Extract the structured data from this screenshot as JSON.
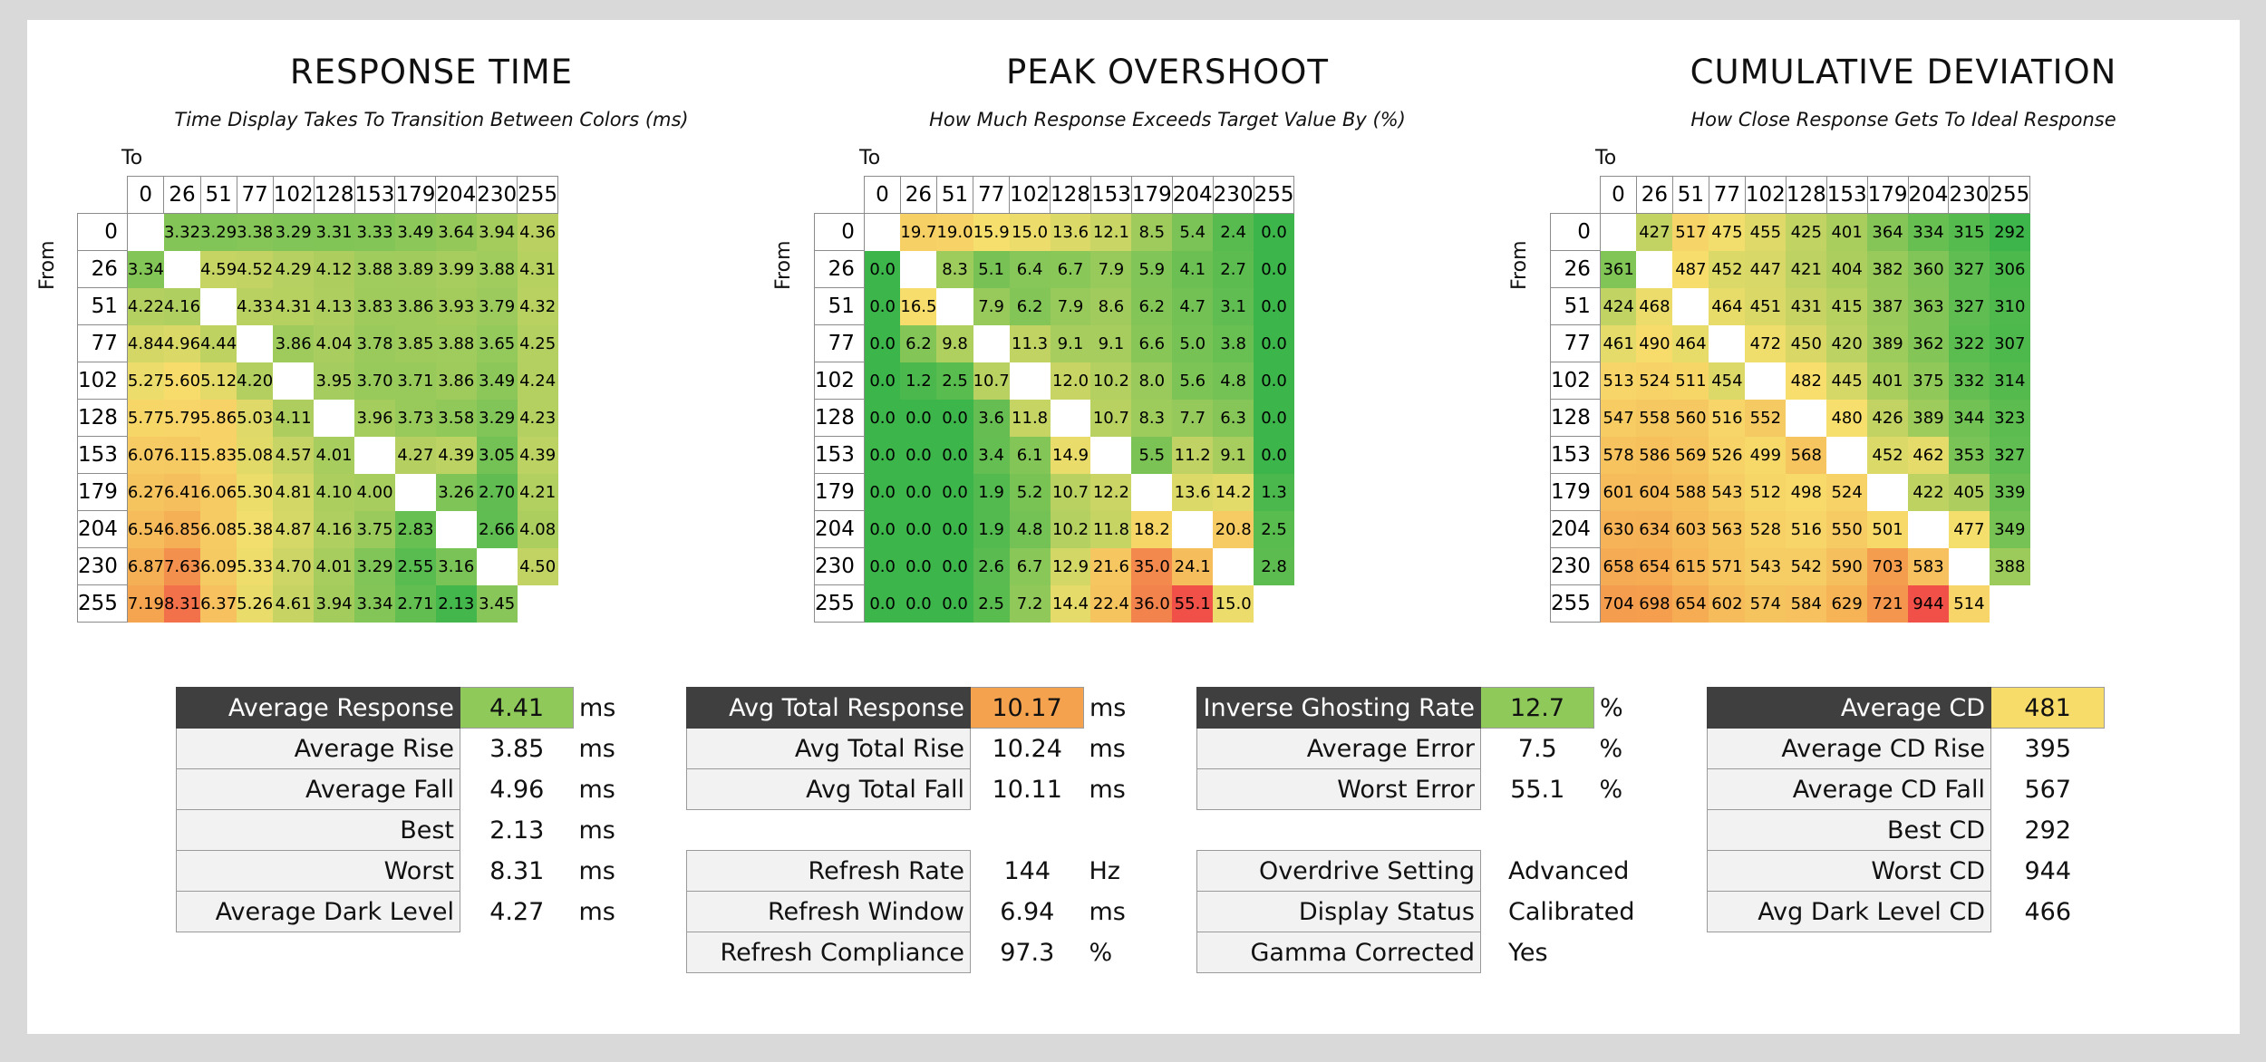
{
  "colors": {
    "green": "#3cb54a",
    "yellow": "#f7df6d",
    "orange": "#f5a24e",
    "red": "#f05048",
    "dark_label_bg": "#3f3f3f"
  },
  "axis": {
    "to_label": "To",
    "from_label": "From"
  },
  "chart_data": [
    {
      "type": "heatmap",
      "title": "RESPONSE TIME",
      "subtitle": "Time Display Takes To Transition Between Colors (ms)",
      "xlabel": "To",
      "ylabel": "From",
      "x": [
        "0",
        "26",
        "51",
        "77",
        "102",
        "128",
        "153",
        "179",
        "204",
        "230",
        "255"
      ],
      "y": [
        "0",
        "26",
        "51",
        "77",
        "102",
        "128",
        "153",
        "179",
        "204",
        "230",
        "255"
      ],
      "scale": {
        "low": 2.0,
        "mid": 5.5,
        "high": 9.0
      },
      "decimals": 2,
      "values": [
        [
          null,
          3.32,
          3.29,
          3.38,
          3.29,
          3.31,
          3.33,
          3.49,
          3.64,
          3.94,
          4.36
        ],
        [
          3.34,
          null,
          4.59,
          4.52,
          4.29,
          4.12,
          3.88,
          3.89,
          3.99,
          3.88,
          4.31
        ],
        [
          4.22,
          4.16,
          null,
          4.33,
          4.31,
          4.13,
          3.83,
          3.86,
          3.93,
          3.79,
          4.32
        ],
        [
          4.84,
          4.96,
          4.44,
          null,
          3.86,
          4.04,
          3.78,
          3.85,
          3.88,
          3.65,
          4.25
        ],
        [
          5.27,
          5.6,
          5.12,
          4.2,
          null,
          3.95,
          3.7,
          3.71,
          3.86,
          3.49,
          4.24
        ],
        [
          5.77,
          5.79,
          5.86,
          5.03,
          4.11,
          null,
          3.96,
          3.73,
          3.58,
          3.29,
          4.23
        ],
        [
          6.07,
          6.11,
          5.83,
          5.08,
          4.57,
          4.01,
          null,
          4.27,
          4.39,
          3.05,
          4.39
        ],
        [
          6.27,
          6.41,
          6.06,
          5.3,
          4.81,
          4.1,
          4.0,
          null,
          3.26,
          2.7,
          4.21
        ],
        [
          6.54,
          6.85,
          6.08,
          5.38,
          4.87,
          4.16,
          3.75,
          2.83,
          null,
          2.66,
          4.08
        ],
        [
          6.87,
          7.63,
          6.09,
          5.33,
          4.7,
          4.01,
          3.29,
          2.55,
          3.16,
          null,
          4.5
        ],
        [
          7.19,
          8.31,
          6.37,
          5.26,
          4.61,
          3.94,
          3.34,
          2.71,
          2.13,
          3.45,
          null
        ]
      ]
    },
    {
      "type": "heatmap",
      "title": "PEAK OVERSHOOT",
      "subtitle": "How Much Response Exceeds Target Value By (%)",
      "xlabel": "To",
      "ylabel": "From",
      "x": [
        "0",
        "26",
        "51",
        "77",
        "102",
        "128",
        "153",
        "179",
        "204",
        "230",
        "255"
      ],
      "y": [
        "0",
        "26",
        "51",
        "77",
        "102",
        "128",
        "153",
        "179",
        "204",
        "230",
        "255"
      ],
      "scale": {
        "low": 0,
        "mid": 16,
        "high": 45
      },
      "decimals": 1,
      "values": [
        [
          null,
          19.7,
          19.0,
          15.9,
          15.0,
          13.6,
          12.1,
          8.5,
          5.4,
          2.4,
          0.0
        ],
        [
          0.0,
          null,
          8.3,
          5.1,
          6.4,
          6.7,
          7.9,
          5.9,
          4.1,
          2.7,
          0.0
        ],
        [
          0.0,
          16.5,
          null,
          7.9,
          6.2,
          7.9,
          8.6,
          6.2,
          4.7,
          3.1,
          0.0
        ],
        [
          0.0,
          6.2,
          9.8,
          null,
          11.3,
          9.1,
          9.1,
          6.6,
          5.0,
          3.8,
          0.0
        ],
        [
          0.0,
          1.2,
          2.5,
          10.7,
          null,
          12.0,
          10.2,
          8.0,
          5.6,
          4.8,
          0.0
        ],
        [
          0.0,
          0.0,
          0.0,
          3.6,
          11.8,
          null,
          10.7,
          8.3,
          7.7,
          6.3,
          0.0
        ],
        [
          0.0,
          0.0,
          0.0,
          3.4,
          6.1,
          14.9,
          null,
          5.5,
          11.2,
          9.1,
          0.0
        ],
        [
          0.0,
          0.0,
          0.0,
          1.9,
          5.2,
          10.7,
          12.2,
          null,
          13.6,
          14.2,
          1.3
        ],
        [
          0.0,
          0.0,
          0.0,
          1.9,
          4.8,
          10.2,
          11.8,
          18.2,
          null,
          20.8,
          2.5
        ],
        [
          0.0,
          0.0,
          0.0,
          2.6,
          6.7,
          12.9,
          21.6,
          35.0,
          24.1,
          null,
          2.8
        ],
        [
          0.0,
          0.0,
          0.0,
          2.5,
          7.2,
          14.4,
          22.4,
          36.0,
          55.1,
          15.0,
          null
        ]
      ]
    },
    {
      "type": "heatmap",
      "title": "CUMULATIVE DEVIATION",
      "subtitle": "How Close Response Gets To Ideal Response",
      "xlabel": "To",
      "ylabel": "From",
      "x": [
        "0",
        "26",
        "51",
        "77",
        "102",
        "128",
        "153",
        "179",
        "204",
        "230",
        "255"
      ],
      "y": [
        "0",
        "26",
        "51",
        "77",
        "102",
        "128",
        "153",
        "179",
        "204",
        "230",
        "255"
      ],
      "scale": {
        "low": 290,
        "mid": 480,
        "high": 900
      },
      "decimals": 0,
      "values": [
        [
          null,
          427,
          517,
          475,
          455,
          425,
          401,
          364,
          334,
          315,
          292
        ],
        [
          361,
          null,
          487,
          452,
          447,
          421,
          404,
          382,
          360,
          327,
          306
        ],
        [
          424,
          468,
          null,
          464,
          451,
          431,
          415,
          387,
          363,
          327,
          310
        ],
        [
          461,
          490,
          464,
          null,
          472,
          450,
          420,
          389,
          362,
          322,
          307
        ],
        [
          513,
          524,
          511,
          454,
          null,
          482,
          445,
          401,
          375,
          332,
          314
        ],
        [
          547,
          558,
          560,
          516,
          552,
          null,
          480,
          426,
          389,
          344,
          323
        ],
        [
          578,
          586,
          569,
          526,
          499,
          568,
          null,
          452,
          462,
          353,
          327
        ],
        [
          601,
          604,
          588,
          543,
          512,
          498,
          524,
          null,
          422,
          405,
          339
        ],
        [
          630,
          634,
          603,
          563,
          528,
          516,
          550,
          501,
          null,
          477,
          349
        ],
        [
          658,
          654,
          615,
          571,
          543,
          542,
          590,
          703,
          583,
          null,
          388
        ],
        [
          704,
          698,
          654,
          602,
          574,
          584,
          629,
          721,
          944,
          514,
          null
        ]
      ]
    }
  ],
  "stats": {
    "response": {
      "headline": {
        "label": "Average Response",
        "value": "4.41",
        "unit": "ms",
        "color": "#8ec95a"
      },
      "rows": [
        {
          "label": "Average Rise",
          "value": "3.85",
          "unit": "ms"
        },
        {
          "label": "Average Fall",
          "value": "4.96",
          "unit": "ms"
        },
        {
          "label": "Best",
          "value": "2.13",
          "unit": "ms"
        },
        {
          "label": "Worst",
          "value": "8.31",
          "unit": "ms"
        },
        {
          "label": "Average Dark Level",
          "value": "4.27",
          "unit": "ms"
        }
      ]
    },
    "total": {
      "headline": {
        "label": "Avg Total Response",
        "value": "10.17",
        "unit": "ms",
        "color": "#f5a24e"
      },
      "rows": [
        {
          "label": "Avg Total Rise",
          "value": "10.24",
          "unit": "ms"
        },
        {
          "label": "Avg Total Fall",
          "value": "10.11",
          "unit": "ms"
        }
      ],
      "refresh_rows": [
        {
          "label": "Refresh Rate",
          "value": "144",
          "unit": "Hz"
        },
        {
          "label": "Refresh Window",
          "value": "6.94",
          "unit": "ms"
        },
        {
          "label": "Refresh Compliance",
          "value": "97.3",
          "unit": "%"
        }
      ]
    },
    "overshoot": {
      "headline": {
        "label": "Inverse Ghosting Rate",
        "value": "12.7",
        "unit": "%",
        "color": "#8ec95a"
      },
      "rows": [
        {
          "label": "Average Error",
          "value": "7.5",
          "unit": "%"
        },
        {
          "label": "Worst Error",
          "value": "55.1",
          "unit": "%"
        }
      ],
      "setting_rows": [
        {
          "label": "Overdrive Setting",
          "value": "Advanced"
        },
        {
          "label": "Display Status",
          "value": "Calibrated"
        },
        {
          "label": "Gamma Corrected",
          "value": "Yes"
        }
      ]
    },
    "cd": {
      "headline": {
        "label": "Average CD",
        "value": "481",
        "color": "#f7dc6a"
      },
      "rows": [
        {
          "label": "Average CD Rise",
          "value": "395"
        },
        {
          "label": "Average CD Fall",
          "value": "567"
        },
        {
          "label": "Best CD",
          "value": "292"
        },
        {
          "label": "Worst CD",
          "value": "944"
        },
        {
          "label": "Avg Dark Level CD",
          "value": "466"
        }
      ]
    }
  }
}
